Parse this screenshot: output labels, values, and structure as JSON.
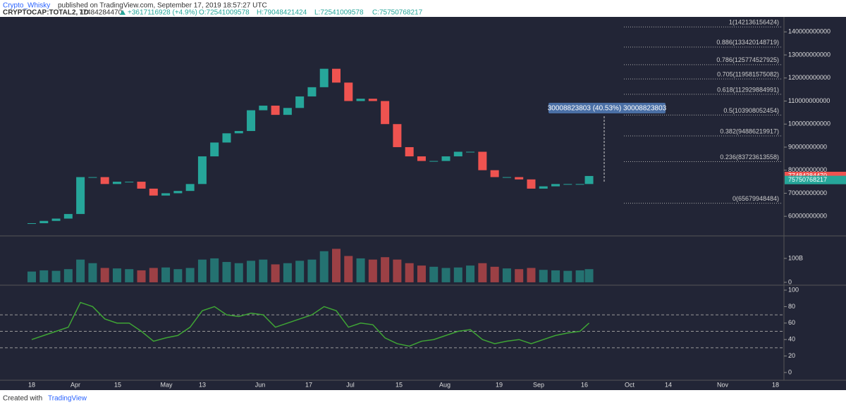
{
  "header": {
    "author": "Crypto_Whisky",
    "published": "published on TradingView.com, September 17, 2019 18:57:27 UTC",
    "symbol": "CRYPTOCAP:TOTAL2, 1D",
    "last": "77484284470",
    "change": "+3617116928 (+4.9%)",
    "open": "O:72541009578",
    "high": "H:79048421424",
    "low": "L:72541009578",
    "close": "C:75750768217"
  },
  "chart_data": [
    {
      "type": "candlestick",
      "x": [
        "Mar 18",
        "Mar 22",
        "Mar 26",
        "Mar 30",
        "Apr 3",
        "Apr 7",
        "Apr 11",
        "Apr 15",
        "Apr 19",
        "Apr 23",
        "Apr 27",
        "May 1",
        "May 5",
        "May 9",
        "May 13",
        "May 17",
        "May 21",
        "May 25",
        "May 29",
        "Jun 2",
        "Jun 6",
        "Jun 10",
        "Jun 14",
        "Jun 18",
        "Jun 22",
        "Jun 26",
        "Jun 30",
        "Jul 4",
        "Jul 8",
        "Jul 12",
        "Jul 16",
        "Jul 20",
        "Jul 24",
        "Jul 28",
        "Aug 1",
        "Aug 5",
        "Aug 9",
        "Aug 13",
        "Aug 17",
        "Aug 21",
        "Aug 25",
        "Aug 29",
        "Sep 2",
        "Sep 6",
        "Sep 10",
        "Sep 14",
        "Sep 17"
      ],
      "values": [
        57000000000,
        58000000000,
        59000000000,
        61000000000,
        77000000000,
        77000000000,
        74000000000,
        75000000000,
        75000000000,
        72000000000,
        69000000000,
        70000000000,
        71000000000,
        74000000000,
        86000000000,
        92000000000,
        96000000000,
        97000000000,
        106000000000,
        108000000000,
        104000000000,
        107000000000,
        112000000000,
        116000000000,
        124000000000,
        118000000000,
        110000000000,
        111000000000,
        110000000000,
        100000000000,
        90000000000,
        86000000000,
        84000000000,
        84000000000,
        86000000000,
        88000000000,
        88000000000,
        80000000000,
        77000000000,
        77000000000,
        76000000000,
        72000000000,
        73000000000,
        74000000000,
        74000000000,
        74000000000,
        77484284470
      ],
      "up_color": "#26a69a",
      "down_color": "#ef5350",
      "ylim": [
        51500000000,
        146500000000
      ],
      "yticks": [
        60000000000,
        70000000000,
        80000000000,
        90000000000,
        100000000000,
        110000000000,
        120000000000,
        130000000000,
        140000000000
      ],
      "fib_levels": [
        {
          "value": 142136156424,
          "label": "1(142136156424)"
        },
        {
          "value": 133420148719,
          "label": "0.886(133420148719)"
        },
        {
          "value": 125774527925,
          "label": "0.786(125774527925)"
        },
        {
          "value": 119581575082,
          "label": "0.705(119581575082)"
        },
        {
          "value": 112929884991,
          "label": "0.618(112929884991)"
        },
        {
          "value": 103908052454,
          "label": "0.5(103908052454)"
        },
        {
          "value": 94886219917,
          "label": "0.382(94886219917)"
        },
        {
          "value": 83723613558,
          "label": "0.236(83723613558)"
        },
        {
          "value": 65679948484,
          "label": "0(65679948484)"
        }
      ],
      "measure": "30008823803 (40.53%) 30008823803",
      "price_labels": [
        {
          "value": 77484284470,
          "color": "#ef5350"
        },
        {
          "value": 75750768217,
          "color": "#26a69a"
        }
      ]
    },
    {
      "type": "bar",
      "values": [
        45000000000,
        50000000000,
        48000000000,
        55000000000,
        95000000000,
        80000000000,
        60000000000,
        58000000000,
        55000000000,
        50000000000,
        60000000000,
        62000000000,
        55000000000,
        60000000000,
        95000000000,
        100000000000,
        85000000000,
        80000000000,
        90000000000,
        95000000000,
        75000000000,
        80000000000,
        90000000000,
        95000000000,
        130000000000,
        140000000000,
        110000000000,
        100000000000,
        95000000000,
        105000000000,
        95000000000,
        80000000000,
        70000000000,
        65000000000,
        60000000000,
        62000000000,
        70000000000,
        80000000000,
        65000000000,
        58000000000,
        55000000000,
        60000000000,
        52000000000,
        50000000000,
        48000000000,
        50000000000,
        55000000000
      ],
      "ylim": [
        -12000000000,
        194000000000
      ],
      "yticks": [
        0,
        {
          "value": 100000000000,
          "label": "100B"
        }
      ]
    },
    {
      "type": "line",
      "color": "#3fa535",
      "values": [
        40,
        45,
        50,
        55,
        85,
        80,
        65,
        60,
        60,
        50,
        38,
        42,
        45,
        55,
        75,
        80,
        70,
        68,
        72,
        70,
        55,
        60,
        65,
        70,
        80,
        75,
        55,
        60,
        58,
        42,
        35,
        32,
        38,
        40,
        45,
        50,
        52,
        40,
        35,
        38,
        40,
        35,
        40,
        45,
        48,
        50,
        60
      ],
      "ylim": [
        -9.4,
        106
      ],
      "yticks": [
        0,
        20,
        40,
        60,
        80,
        100
      ],
      "levels": [
        70,
        50,
        30
      ],
      "xticks": [
        "18",
        "Apr",
        "15",
        "May",
        "13",
        "Jun",
        "17",
        "Jul",
        "15",
        "Aug",
        "19",
        "Sep",
        "16",
        "Oct",
        "14",
        "Nov",
        "18"
      ]
    }
  ],
  "footer": {
    "created": "Created with",
    "brand": "TradingView"
  }
}
